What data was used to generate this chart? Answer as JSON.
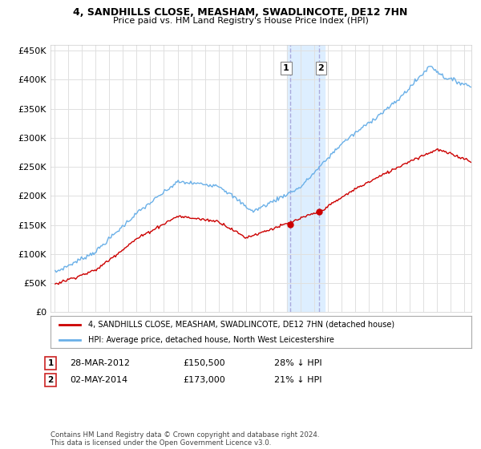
{
  "title1": "4, SANDHILLS CLOSE, MEASHAM, SWADLINCOTE, DE12 7HN",
  "title2": "Price paid vs. HM Land Registry's House Price Index (HPI)",
  "ylim": [
    0,
    460000
  ],
  "yticks": [
    0,
    50000,
    100000,
    150000,
    200000,
    250000,
    300000,
    350000,
    400000,
    450000
  ],
  "ytick_labels": [
    "£0",
    "£50K",
    "£100K",
    "£150K",
    "£200K",
    "£250K",
    "£300K",
    "£350K",
    "£400K",
    "£450K"
  ],
  "hpi_color": "#6ab0e8",
  "price_color": "#cc0000",
  "marker_color": "#cc0000",
  "transaction1_x": 2012.24,
  "transaction1_price": 150500,
  "transaction2_x": 2014.34,
  "transaction2_price": 173000,
  "highlight_x1": 2012.0,
  "highlight_x2": 2014.75,
  "highlight_color": "#ddeeff",
  "vline_color": "#aaaadd",
  "legend_price_label": "4, SANDHILLS CLOSE, MEASHAM, SWADLINCOTE, DE12 7HN (detached house)",
  "legend_hpi_label": "HPI: Average price, detached house, North West Leicestershire",
  "annotation1_date": "28-MAR-2012",
  "annotation1_price": "£150,500",
  "annotation1_hpi": "28% ↓ HPI",
  "annotation2_date": "02-MAY-2014",
  "annotation2_price": "£173,000",
  "annotation2_hpi": "21% ↓ HPI",
  "footnote": "Contains HM Land Registry data © Crown copyright and database right 2024.\nThis data is licensed under the Open Government Licence v3.0.",
  "background_color": "#ffffff",
  "grid_color": "#e0e0e0",
  "xmin": 1994.7,
  "xmax": 2025.5
}
